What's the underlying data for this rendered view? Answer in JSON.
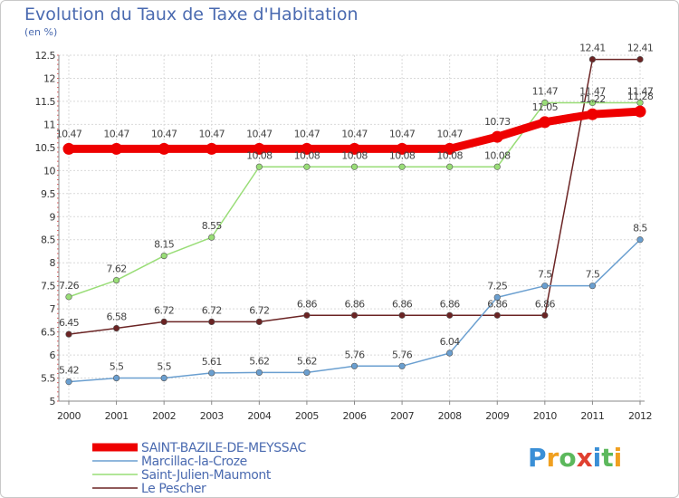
{
  "header": {
    "title": "Evolution du Taux de Taxe d'Habitation",
    "subtitle": "(en %)"
  },
  "logo": {
    "text": "Proxiti"
  },
  "chart_data": {
    "type": "line",
    "title": "Evolution du Taux de Taxe d'Habitation",
    "ylabel": "(en %)",
    "xlabel": "",
    "x": [
      "2000",
      "2001",
      "2002",
      "2003",
      "2004",
      "2005",
      "2006",
      "2007",
      "2008",
      "2009",
      "2010",
      "2011",
      "2012"
    ],
    "ylim": [
      5,
      12.5
    ],
    "yticks": [
      "5",
      "5.5",
      "6",
      "6.5",
      "7",
      "7.5",
      "8",
      "8.5",
      "9",
      "9.5",
      "10",
      "10.5",
      "11",
      "11.5",
      "12",
      "12.5"
    ],
    "grid": true,
    "legend": "bottom-left",
    "series": [
      {
        "name": "SAINT-BAZILE-DE-MEYSSAC",
        "color": "#ee0000",
        "values": [
          10.47,
          10.47,
          10.47,
          10.47,
          10.47,
          10.47,
          10.47,
          10.47,
          10.47,
          10.73,
          11.05,
          11.22,
          11.28
        ],
        "labels": [
          "10.47",
          "10.47",
          "10.47",
          "10.47",
          "10.47",
          "10.47",
          "10.47",
          "10.47",
          "10.47",
          "10.73",
          "11.05",
          "11.22",
          "11.28"
        ]
      },
      {
        "name": "Marcillac-la-Croze",
        "color": "#6a9fd0",
        "values": [
          5.42,
          5.5,
          5.5,
          5.61,
          5.62,
          5.62,
          5.76,
          5.76,
          6.04,
          7.25,
          7.5,
          7.5,
          8.5
        ],
        "labels": [
          "5.42",
          "5.5",
          "5.5",
          "5.61",
          "5.62",
          "5.62",
          "5.76",
          "5.76",
          "6.04",
          "7.25",
          "7.5",
          "7.5",
          "8.5"
        ]
      },
      {
        "name": "Saint-Julien-Maumont",
        "color": "#99dd77",
        "values": [
          7.26,
          7.62,
          8.15,
          8.55,
          10.08,
          10.08,
          10.08,
          10.08,
          10.08,
          10.08,
          11.47,
          11.47,
          11.47
        ],
        "labels": [
          "7.26",
          "7.62",
          "8.15",
          "8.55",
          "10.08",
          "10.08",
          "10.08",
          "10.08",
          "10.08",
          "10.08",
          "11.47",
          "11.47",
          "11.47"
        ]
      },
      {
        "name": "Le Pescher",
        "color": "#6b2424",
        "values": [
          6.45,
          6.58,
          6.72,
          6.72,
          6.72,
          6.86,
          6.86,
          6.86,
          6.86,
          6.86,
          6.86,
          12.41,
          12.41
        ],
        "labels": [
          "6.45",
          "6.58",
          "6.72",
          "6.72",
          "6.72",
          "6.86",
          "6.86",
          "6.86",
          "6.86",
          "6.86",
          "6.86",
          "12.41",
          "12.41"
        ]
      }
    ]
  }
}
